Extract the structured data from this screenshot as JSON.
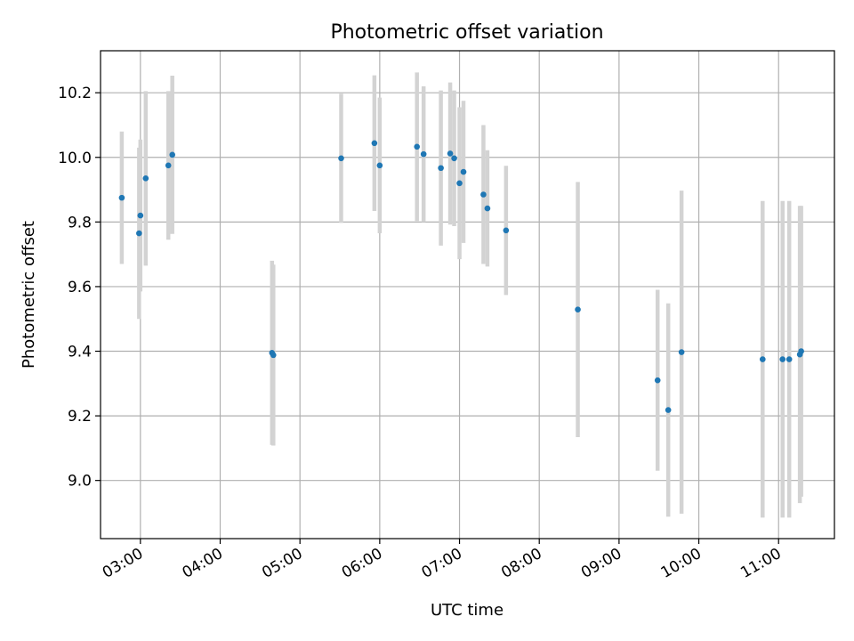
{
  "chart_data": {
    "type": "scatter",
    "title": "Photometric offset variation",
    "xlabel": "UTC time",
    "ylabel": "Photometric offset",
    "xlim": [
      "02:30",
      "11:42"
    ],
    "ylim": [
      8.82,
      10.33
    ],
    "x_ticks": [
      "03:00",
      "04:00",
      "05:00",
      "06:00",
      "07:00",
      "08:00",
      "09:00",
      "10:00",
      "11:00"
    ],
    "y_ticks": [
      "9.0",
      "9.2",
      "9.4",
      "9.6",
      "9.8",
      "10.0",
      "10.2"
    ],
    "grid": true,
    "colors": {
      "point": "#1f77b4",
      "errorbar": "#d3d3d3",
      "grid": "#b0b0b0"
    },
    "series": [
      {
        "points": [
          {
            "x": "02:46",
            "y": 9.875,
            "err": 0.205
          },
          {
            "x": "02:59",
            "y": 9.765,
            "err": 0.265
          },
          {
            "x": "03:00",
            "y": 9.82,
            "err": 0.235
          },
          {
            "x": "03:04",
            "y": 9.935,
            "err": 0.27
          },
          {
            "x": "03:21",
            "y": 9.975,
            "err": 0.23
          },
          {
            "x": "03:24",
            "y": 10.008,
            "err": 0.245
          },
          {
            "x": "04:39",
            "y": 9.395,
            "err": 0.285
          },
          {
            "x": "04:40",
            "y": 9.388,
            "err": 0.28
          },
          {
            "x": "05:31",
            "y": 9.997,
            "err": 0.2
          },
          {
            "x": "05:56",
            "y": 10.044,
            "err": 0.21
          },
          {
            "x": "06:00",
            "y": 9.975,
            "err": 0.21
          },
          {
            "x": "06:28",
            "y": 10.033,
            "err": 0.23
          },
          {
            "x": "06:33",
            "y": 10.01,
            "err": 0.21
          },
          {
            "x": "06:46",
            "y": 9.967,
            "err": 0.24
          },
          {
            "x": "06:53",
            "y": 10.012,
            "err": 0.22
          },
          {
            "x": "06:56",
            "y": 9.997,
            "err": 0.21
          },
          {
            "x": "07:00",
            "y": 9.92,
            "err": 0.235
          },
          {
            "x": "07:03",
            "y": 9.955,
            "err": 0.22
          },
          {
            "x": "07:18",
            "y": 9.885,
            "err": 0.215
          },
          {
            "x": "07:21",
            "y": 9.842,
            "err": 0.18
          },
          {
            "x": "07:35",
            "y": 9.774,
            "err": 0.2
          },
          {
            "x": "08:29",
            "y": 9.529,
            "err": 0.395
          },
          {
            "x": "09:29",
            "y": 9.31,
            "err": 0.28
          },
          {
            "x": "09:37",
            "y": 9.218,
            "err": 0.33
          },
          {
            "x": "09:47",
            "y": 9.397,
            "err": 0.5
          },
          {
            "x": "10:48",
            "y": 9.375,
            "err": 0.49
          },
          {
            "x": "11:03",
            "y": 9.375,
            "err": 0.49
          },
          {
            "x": "11:08",
            "y": 9.375,
            "err": 0.49
          },
          {
            "x": "11:16",
            "y": 9.39,
            "err": 0.46
          },
          {
            "x": "11:17",
            "y": 9.4,
            "err": 0.45
          }
        ]
      }
    ]
  }
}
